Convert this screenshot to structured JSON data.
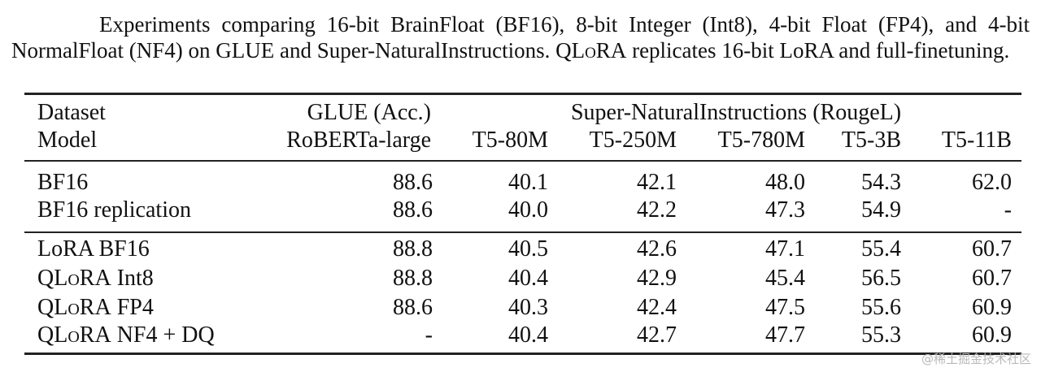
{
  "caption": "Experiments comparing 16-bit BrainFloat (BF16), 8-bit Integer (Int8), 4-bit Float (FP4), and 4-bit NormalFloat (NF4) on GLUE and Super-NaturalInstructions. QLoRA replicates 16-bit LoRA and full-finetuning.",
  "caption_parts": {
    "before": "Experiments comparing 16-bit BrainFloat (BF16), 8-bit Integer (Int8), 4-bit Float (FP4), and 4-bit NormalFloat (NF4) on GLUE and Super-NaturalInstructions. ",
    "q": "Q",
    "lora": "LoRA",
    "after": " replicates 16-bit LoRA and full-finetuning."
  },
  "header": {
    "dataset_label": "Dataset",
    "model_label": "Model",
    "glue_label": "GLUE (Acc.)",
    "glue_model": "RoBERTa-large",
    "sni_label": "Super-NaturalInstructions (RougeL)",
    "sni_models": [
      "T5-80M",
      "T5-250M",
      "T5-780M",
      "T5-3B",
      "T5-11B"
    ]
  },
  "rows": [
    {
      "name": "BF16",
      "values": [
        "88.6",
        "40.1",
        "42.1",
        "48.0",
        "54.3",
        "62.0"
      ]
    },
    {
      "name": "BF16 replication",
      "values": [
        "88.6",
        "40.0",
        "42.2",
        "47.3",
        "54.9",
        "-"
      ]
    },
    {
      "name": "LoRA BF16",
      "values": [
        "88.8",
        "40.5",
        "42.6",
        "47.1",
        "55.4",
        "60.7"
      ]
    },
    {
      "name": "QLoRA Int8",
      "values": [
        "88.8",
        "40.4",
        "42.9",
        "45.4",
        "56.5",
        "60.7"
      ]
    },
    {
      "name": "QLoRA FP4",
      "values": [
        "88.6",
        "40.3",
        "42.4",
        "47.5",
        "55.6",
        "60.9"
      ]
    },
    {
      "name": "QLoRA NF4 + DQ",
      "values": [
        "-",
        "40.4",
        "42.7",
        "47.7",
        "55.3",
        "60.9"
      ]
    }
  ],
  "watermark": "@稀土掘金技术社区"
}
